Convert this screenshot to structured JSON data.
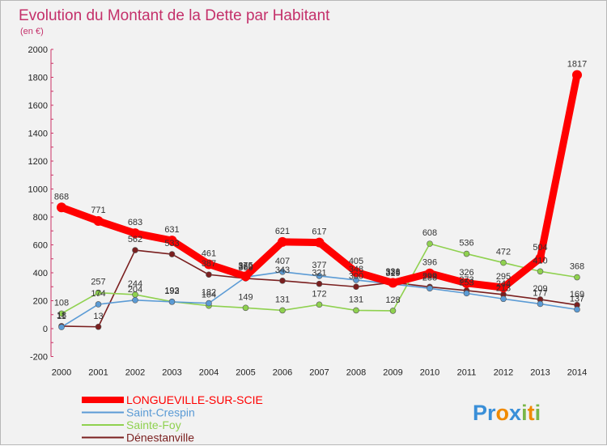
{
  "chart_data": {
    "type": "line",
    "title": "Evolution du Montant de la Dette par Habitant",
    "subtitle": "(en €)",
    "xlabel": "",
    "ylabel": "",
    "x": [
      "2000",
      "2001",
      "2002",
      "2003",
      "2004",
      "2005",
      "2006",
      "2007",
      "2008",
      "2009",
      "2010",
      "2011",
      "2012",
      "2013",
      "2014"
    ],
    "ylim": [
      -200,
      2000
    ],
    "yticks": [
      "-200",
      "0",
      "200",
      "400",
      "600",
      "800",
      "1000",
      "1200",
      "1400",
      "1600",
      "1800",
      "2000"
    ],
    "grid": false,
    "legend_position": "bottom-left",
    "series": [
      {
        "name": "LONGUEVILLE-SUR-SCIE",
        "color": "#ff0000",
        "values": [
          868,
          771,
          683,
          631,
          461,
          375,
          621,
          617,
          405,
          328,
          396,
          326,
          295,
          504,
          1817
        ],
        "labels": [
          "868",
          "771",
          "683",
          "631",
          "461",
          "375",
          "621",
          "617",
          "405",
          "328",
          "396",
          "326",
          "295",
          "504",
          "1817"
        ]
      },
      {
        "name": "Saint-Crespin",
        "color": "#5b9bd5",
        "values": [
          11,
          174,
          204,
          192,
          182,
          369,
          407,
          377,
          348,
          319,
          288,
          253,
          213,
          177,
          137
        ],
        "labels": [
          "11",
          "174",
          "204",
          "192",
          "182",
          "369",
          "407",
          "377",
          "348",
          "319",
          "288",
          "253",
          "213",
          "177",
          "137"
        ]
      },
      {
        "name": "Sainte-Foy",
        "color": "#8fd14f",
        "values": [
          108,
          257,
          244,
          193,
          164,
          149,
          131,
          172,
          131,
          128,
          608,
          536,
          472,
          410,
          368
        ],
        "labels": [
          "108",
          "257",
          "244",
          "193",
          "164",
          "149",
          "131",
          "172",
          "131",
          "128",
          "608",
          "536",
          "472",
          "410",
          "368"
        ]
      },
      {
        "name": "Dénestanville",
        "color": "#7a1f1f",
        "values": [
          18,
          13,
          562,
          533,
          387,
          360,
          343,
          321,
          300,
          331,
          299,
          273,
          244,
          209,
          169
        ],
        "labels": [
          "18",
          "13",
          "562",
          "533",
          "387",
          "360",
          "343",
          "321",
          "300",
          "331",
          "299",
          "273",
          "244",
          "209",
          "169"
        ]
      }
    ]
  },
  "brand": {
    "letters": [
      "P",
      "r",
      "o",
      "x",
      "i",
      "t",
      "i"
    ],
    "colors": [
      "#3a8fd8",
      "#3a8fd8",
      "#f08a00",
      "#3a8fd8",
      "#7ab648",
      "#f08a00",
      "#7ab648"
    ]
  }
}
